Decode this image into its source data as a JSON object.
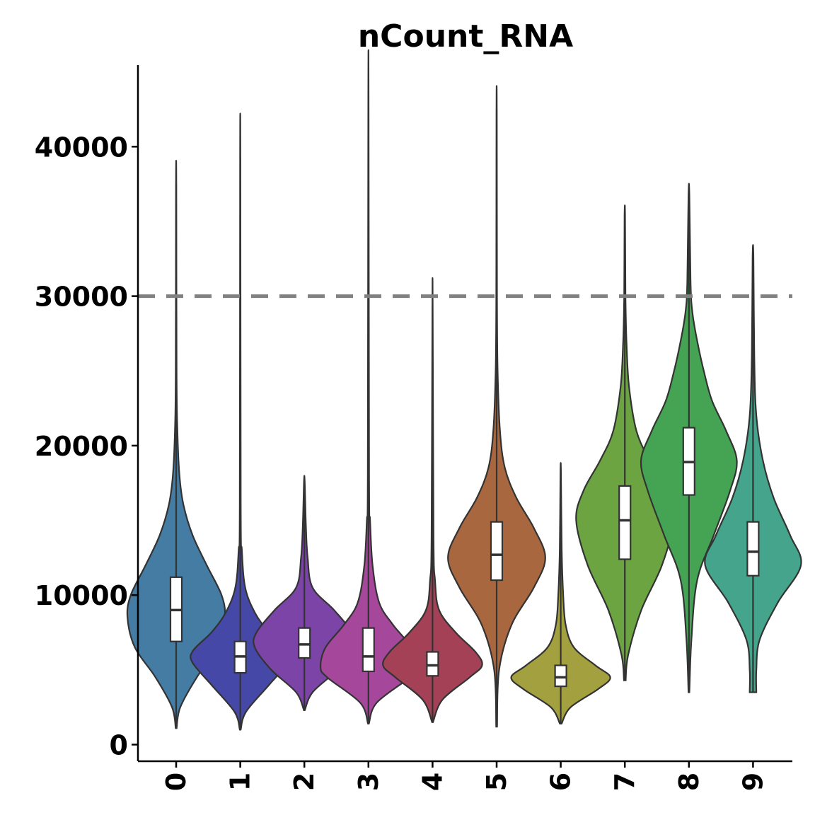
{
  "chart_data": {
    "type": "violin",
    "title": "nCount_RNA",
    "xlabel": "",
    "ylabel": "",
    "ylim": [
      -1000,
      45500
    ],
    "yticks": [
      0,
      10000,
      20000,
      30000,
      40000
    ],
    "ytick_labels": [
      "0",
      "10000",
      "20000",
      "30000",
      "40000"
    ],
    "reference_line": {
      "y": 30000,
      "style": "dashed",
      "color": "#808080"
    },
    "grid": false,
    "legend": "none",
    "categories": [
      "0",
      "1",
      "2",
      "3",
      "4",
      "5",
      "6",
      "7",
      "8",
      "9"
    ],
    "series": [
      {
        "category": "0",
        "color": "#447ca4",
        "min": 1100,
        "max": 37500,
        "q1": 6900,
        "median": 9000,
        "q3": 11200,
        "density": [
          [
            1100,
            0.005
          ],
          [
            2500,
            0.05
          ],
          [
            4500,
            0.25
          ],
          [
            6500,
            0.5
          ],
          [
            8500,
            0.59
          ],
          [
            10000,
            0.55
          ],
          [
            12000,
            0.37
          ],
          [
            14000,
            0.2
          ],
          [
            16000,
            0.09
          ],
          [
            18000,
            0.04
          ],
          [
            21000,
            0.015
          ],
          [
            25000,
            0.005
          ],
          [
            37500,
            0.002
          ]
        ]
      },
      {
        "category": "1",
        "color": "#4648a8",
        "min": 1000,
        "max": 39300,
        "q1": 4800,
        "median": 5900,
        "q3": 6900,
        "density": [
          [
            1000,
            0.005
          ],
          [
            2200,
            0.07
          ],
          [
            4000,
            0.35
          ],
          [
            5500,
            0.58
          ],
          [
            6300,
            0.57
          ],
          [
            7500,
            0.35
          ],
          [
            8800,
            0.18
          ],
          [
            10500,
            0.06
          ],
          [
            13000,
            0.02
          ],
          [
            16000,
            0.006
          ],
          [
            39300,
            0.002
          ]
        ]
      },
      {
        "category": "2",
        "color": "#7b44a6",
        "min": 2300,
        "max": 17600,
        "q1": 5800,
        "median": 6700,
        "q3": 7800,
        "density": [
          [
            2300,
            0.005
          ],
          [
            3500,
            0.1
          ],
          [
            5000,
            0.4
          ],
          [
            6500,
            0.6
          ],
          [
            7500,
            0.58
          ],
          [
            9000,
            0.36
          ],
          [
            10500,
            0.1
          ],
          [
            12500,
            0.04
          ],
          [
            14500,
            0.02
          ],
          [
            17600,
            0.004
          ]
        ]
      },
      {
        "category": "3",
        "color": "#a5479a",
        "min": 1400,
        "max": 43300,
        "q1": 4900,
        "median": 5900,
        "q3": 7800,
        "density": [
          [
            1400,
            0.005
          ],
          [
            2800,
            0.1
          ],
          [
            4500,
            0.5
          ],
          [
            5200,
            0.58
          ],
          [
            6500,
            0.52
          ],
          [
            8000,
            0.3
          ],
          [
            9500,
            0.13
          ],
          [
            12000,
            0.05
          ],
          [
            15000,
            0.02
          ],
          [
            18000,
            0.008
          ],
          [
            43300,
            0.002
          ]
        ]
      },
      {
        "category": "4",
        "color": "#a54157",
        "min": 1500,
        "max": 29300,
        "q1": 4600,
        "median": 5300,
        "q3": 6200,
        "density": [
          [
            1500,
            0.005
          ],
          [
            3000,
            0.12
          ],
          [
            4500,
            0.45
          ],
          [
            5300,
            0.6
          ],
          [
            6200,
            0.52
          ],
          [
            7500,
            0.28
          ],
          [
            9000,
            0.08
          ],
          [
            11000,
            0.03
          ],
          [
            14000,
            0.012
          ],
          [
            29300,
            0.002
          ]
        ]
      },
      {
        "category": "5",
        "color": "#a9673f",
        "min": 1200,
        "max": 42500,
        "q1": 11000,
        "median": 12700,
        "q3": 14900,
        "density": [
          [
            1200,
            0.005
          ],
          [
            5000,
            0.03
          ],
          [
            8000,
            0.18
          ],
          [
            10500,
            0.45
          ],
          [
            12500,
            0.59
          ],
          [
            14500,
            0.45
          ],
          [
            16500,
            0.24
          ],
          [
            18500,
            0.1
          ],
          [
            21000,
            0.04
          ],
          [
            25000,
            0.012
          ],
          [
            30000,
            0.004
          ],
          [
            42500,
            0.002
          ]
        ]
      },
      {
        "category": "6",
        "color": "#a3a03f",
        "min": 1400,
        "max": 18200,
        "q1": 3900,
        "median": 4500,
        "q3": 5300,
        "density": [
          [
            1400,
            0.01
          ],
          [
            2500,
            0.12
          ],
          [
            3700,
            0.45
          ],
          [
            4500,
            0.6
          ],
          [
            5300,
            0.42
          ],
          [
            6500,
            0.16
          ],
          [
            8000,
            0.06
          ],
          [
            10000,
            0.03
          ],
          [
            13000,
            0.012
          ],
          [
            18200,
            0.003
          ]
        ]
      },
      {
        "category": "7",
        "color": "#6ca441",
        "min": 4300,
        "max": 35400,
        "q1": 12400,
        "median": 15000,
        "q3": 17300,
        "density": [
          [
            4300,
            0.01
          ],
          [
            6000,
            0.04
          ],
          [
            9000,
            0.2
          ],
          [
            12000,
            0.45
          ],
          [
            15000,
            0.59
          ],
          [
            17000,
            0.5
          ],
          [
            19000,
            0.3
          ],
          [
            21000,
            0.14
          ],
          [
            24000,
            0.05
          ],
          [
            27000,
            0.02
          ],
          [
            30000,
            0.008
          ],
          [
            35400,
            0.003
          ]
        ]
      },
      {
        "category": "8",
        "color": "#44a454",
        "min": 3500,
        "max": 36800,
        "q1": 16700,
        "median": 18900,
        "q3": 21200,
        "density": [
          [
            3500,
            0.005
          ],
          [
            7000,
            0.03
          ],
          [
            11000,
            0.1
          ],
          [
            14000,
            0.3
          ],
          [
            17000,
            0.5
          ],
          [
            19000,
            0.58
          ],
          [
            21000,
            0.45
          ],
          [
            23000,
            0.28
          ],
          [
            25000,
            0.18
          ],
          [
            27000,
            0.1
          ],
          [
            29000,
            0.04
          ],
          [
            31000,
            0.02
          ],
          [
            36800,
            0.005
          ]
        ]
      },
      {
        "category": "9",
        "color": "#44a48c",
        "min": 3500,
        "max": 32600,
        "q1": 11300,
        "median": 12900,
        "q3": 14900,
        "density": [
          [
            3500,
            0.04
          ],
          [
            5000,
            0.04
          ],
          [
            7000,
            0.08
          ],
          [
            9500,
            0.3
          ],
          [
            12000,
            0.58
          ],
          [
            14000,
            0.45
          ],
          [
            16500,
            0.25
          ],
          [
            19000,
            0.12
          ],
          [
            22000,
            0.04
          ],
          [
            26000,
            0.015
          ],
          [
            32600,
            0.005
          ]
        ]
      }
    ]
  }
}
